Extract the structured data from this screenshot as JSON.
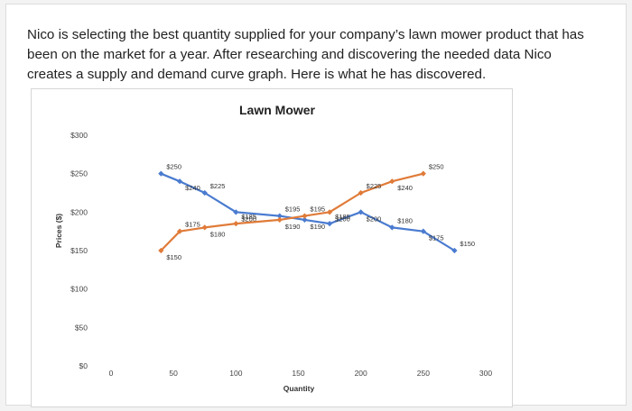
{
  "question": {
    "text": "Nico is selecting the best quantity supplied for your company’s lawn mower product that has been on the market for a year. After researching and discovering the needed data Nico creates a supply and demand curve graph. Here is what he has discovered."
  },
  "chart_data": {
    "type": "line",
    "title": "Lawn Mower",
    "xlabel": "Quantity",
    "ylabel": "Prices ($)",
    "xlim": [
      0,
      300
    ],
    "ylim": [
      0,
      300
    ],
    "x_ticks": [
      "0",
      "50",
      "100",
      "150",
      "200",
      "250",
      "300"
    ],
    "y_ticks": [
      "$0",
      "$50",
      "$100",
      "$150",
      "$200",
      "$250",
      "$300"
    ],
    "grid": false,
    "series": [
      {
        "color": "#4a7bd0",
        "points": [
          {
            "x": 40,
            "y": 250,
            "label": "$250"
          },
          {
            "x": 55,
            "y": 240,
            "label": "$240"
          },
          {
            "x": 75,
            "y": 225,
            "label": "$225"
          },
          {
            "x": 100,
            "y": 200,
            "label": "$200"
          },
          {
            "x": 135,
            "y": 195,
            "label": "$195"
          },
          {
            "x": 155,
            "y": 190,
            "label": "$190"
          },
          {
            "x": 175,
            "y": 185,
            "label": "$185"
          },
          {
            "x": 200,
            "y": 200,
            "label": "$200"
          },
          {
            "x": 225,
            "y": 180,
            "label": "$180"
          },
          {
            "x": 250,
            "y": 175,
            "label": "$175"
          },
          {
            "x": 275,
            "y": 150,
            "label": "$150"
          }
        ]
      },
      {
        "color": "#e07b39",
        "points": [
          {
            "x": 40,
            "y": 150,
            "label": "$150"
          },
          {
            "x": 55,
            "y": 175,
            "label": "$175"
          },
          {
            "x": 75,
            "y": 180,
            "label": "$180"
          },
          {
            "x": 100,
            "y": 185,
            "label": "$185"
          },
          {
            "x": 135,
            "y": 190,
            "label": "$190"
          },
          {
            "x": 155,
            "y": 195,
            "label": "$195"
          },
          {
            "x": 175,
            "y": 200,
            "label": "$200"
          },
          {
            "x": 200,
            "y": 225,
            "label": "$225"
          },
          {
            "x": 225,
            "y": 240,
            "label": "$240"
          },
          {
            "x": 250,
            "y": 250,
            "label": "$250"
          }
        ]
      }
    ]
  }
}
